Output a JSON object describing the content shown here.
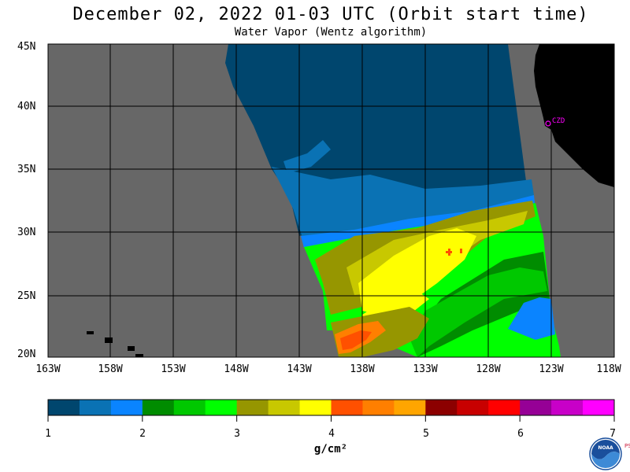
{
  "header": {
    "title": "December 02, 2022  01-03 UTC  (Orbit start time)",
    "subtitle": "Water Vapor (Wentz algorithm)"
  },
  "map": {
    "lat_ticks": [
      "45N",
      "40N",
      "35N",
      "30N",
      "25N",
      "20N"
    ],
    "lon_ticks": [
      "163W",
      "158W",
      "153W",
      "148W",
      "143W",
      "138W",
      "133W",
      "128W",
      "123W",
      "118W"
    ],
    "station_label": "CZD",
    "colors": {
      "background": "#676767",
      "land": "#000000",
      "grid": "#000000",
      "station": "#ff00ff"
    }
  },
  "colorbar": {
    "labels": [
      "1",
      "2",
      "3",
      "4",
      "5",
      "6",
      "7"
    ],
    "units": "g/cm²",
    "colors": [
      "#00466e",
      "#0a72b4",
      "#0a84ff",
      "#008c00",
      "#00c800",
      "#00ff00",
      "#969600",
      "#c8c800",
      "#ffff00",
      "#ff5000",
      "#ff7f00",
      "#ffa500",
      "#8c0000",
      "#c80000",
      "#ff0000",
      "#960096",
      "#c800c8",
      "#ff00ff"
    ]
  },
  "logo": {
    "text": "NOAA",
    "side_text": "PSL"
  }
}
